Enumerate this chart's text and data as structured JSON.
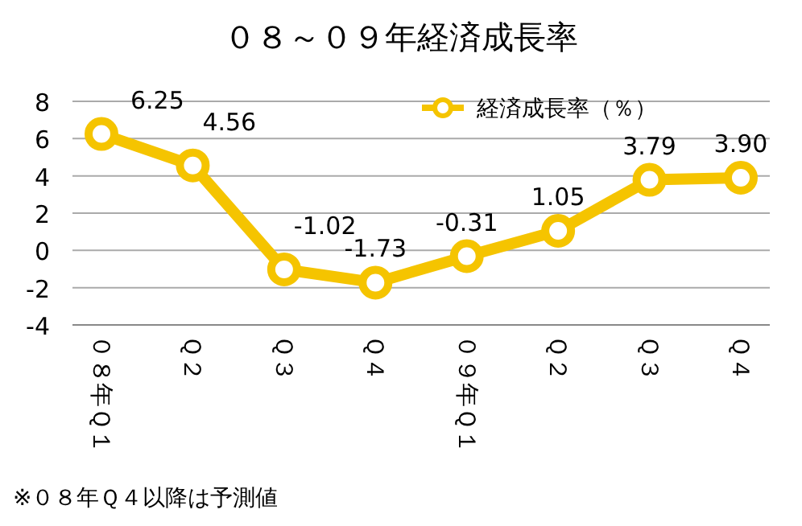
{
  "chart_data": {
    "type": "line",
    "title": "０８～０９年経済成長率",
    "categories": [
      "０８年Ｑ１",
      "Ｑ２",
      "Ｑ３",
      "Ｑ４",
      "０９年Ｑ１",
      "Ｑ２",
      "Ｑ３",
      "Ｑ４"
    ],
    "series": [
      {
        "name": "経済成長率（％）",
        "color": "#f5c400",
        "values": [
          6.25,
          4.56,
          -1.02,
          -1.73,
          -0.31,
          1.05,
          3.79,
          3.9
        ],
        "value_labels": [
          "6.25",
          "4.56",
          "-1.02",
          "-1.73",
          "-0.31",
          "1.05",
          "3.79",
          "3.90"
        ]
      }
    ],
    "ylim": [
      -4,
      8
    ],
    "yticks": [
      -4,
      -2,
      0,
      2,
      4,
      6,
      8
    ],
    "grid": "y",
    "legend": "top right",
    "marker": "circle",
    "annotations": [
      "※０８年Ｑ４以降は予測値"
    ]
  }
}
